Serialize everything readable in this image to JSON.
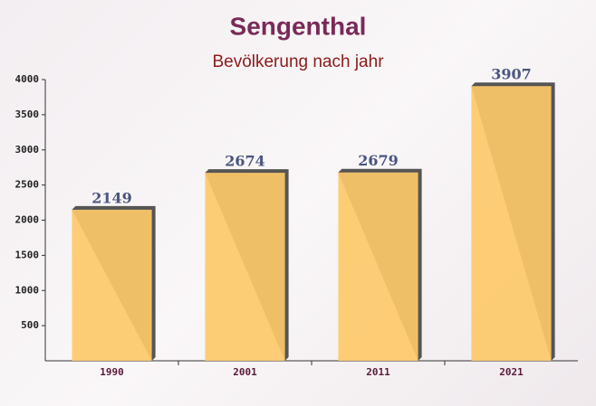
{
  "chart_data": {
    "type": "bar",
    "title": "Sengenthal",
    "subtitle": "Bevölkerung nach jahr",
    "categories": [
      "1990",
      "2001",
      "2011",
      "2021"
    ],
    "values": [
      2149,
      2674,
      2679,
      3907
    ],
    "color": "#fdc96a",
    "ylim": [
      0,
      4000
    ],
    "yticks": [
      500,
      1000,
      1500,
      2000,
      2500,
      3000,
      3500,
      4000
    ],
    "grid": false
  }
}
